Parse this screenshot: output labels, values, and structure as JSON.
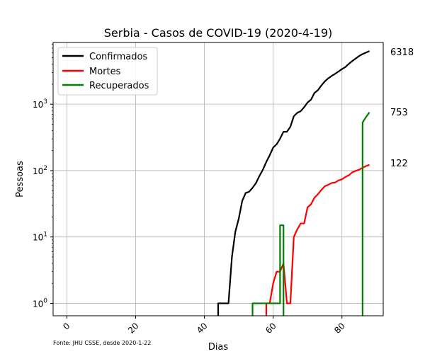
{
  "chart_data": {
    "type": "line",
    "title": "Serbia - Casos de COVID-19 (2020-4-19)",
    "xlabel": "Dias",
    "ylabel": "Pessoas",
    "y_scale": "log",
    "xlim": [
      -4,
      92
    ],
    "ylim": [
      0.65,
      8500
    ],
    "x_ticks": [
      0,
      20,
      40,
      60,
      80
    ],
    "y_ticks": [
      {
        "value": 1,
        "base": "10",
        "exp": "0"
      },
      {
        "value": 10,
        "base": "10",
        "exp": "1"
      },
      {
        "value": 100,
        "base": "10",
        "exp": "2"
      },
      {
        "value": 1000,
        "base": "10",
        "exp": "3"
      }
    ],
    "grid": true,
    "legend_position": "top-left",
    "source_note": "Fonte: JHU CSSE, desde 2020-1-22",
    "end_labels": [
      "6318",
      "753",
      "122"
    ],
    "series": [
      {
        "name": "Confirmados",
        "color": "#000000",
        "end_value": 6318,
        "points": [
          [
            44,
            0.5
          ],
          [
            44,
            1
          ],
          [
            47,
            1
          ],
          [
            48,
            5
          ],
          [
            49,
            12
          ],
          [
            50,
            19
          ],
          [
            51,
            35
          ],
          [
            52,
            46
          ],
          [
            53,
            48
          ],
          [
            54,
            55
          ],
          [
            55,
            65
          ],
          [
            56,
            83
          ],
          [
            57,
            103
          ],
          [
            58,
            135
          ],
          [
            59,
            171
          ],
          [
            60,
            222
          ],
          [
            61,
            249
          ],
          [
            62,
            303
          ],
          [
            63,
            384
          ],
          [
            64,
            384
          ],
          [
            65,
            457
          ],
          [
            66,
            659
          ],
          [
            67,
            741
          ],
          [
            68,
            785
          ],
          [
            69,
            900
          ],
          [
            70,
            1060
          ],
          [
            71,
            1171
          ],
          [
            72,
            1476
          ],
          [
            73,
            1624
          ],
          [
            74,
            1908
          ],
          [
            75,
            2200
          ],
          [
            76,
            2447
          ],
          [
            77,
            2666
          ],
          [
            78,
            2867
          ],
          [
            79,
            3105
          ],
          [
            80,
            3380
          ],
          [
            81,
            3630
          ],
          [
            82,
            4054
          ],
          [
            83,
            4465
          ],
          [
            84,
            4873
          ],
          [
            85,
            5318
          ],
          [
            86,
            5690
          ],
          [
            87,
            5994
          ],
          [
            88,
            6318
          ]
        ]
      },
      {
        "name": "Mortes",
        "color": "#ff0000",
        "end_value": 122,
        "points": [
          [
            58,
            0.5
          ],
          [
            58,
            1
          ],
          [
            59,
            1
          ],
          [
            60,
            2
          ],
          [
            61,
            3
          ],
          [
            62,
            3
          ],
          [
            63,
            4
          ],
          [
            64,
            1
          ],
          [
            65,
            1
          ],
          [
            66,
            10
          ],
          [
            67,
            13
          ],
          [
            68,
            16
          ],
          [
            69,
            16
          ],
          [
            70,
            28
          ],
          [
            71,
            31
          ],
          [
            72,
            39
          ],
          [
            73,
            44
          ],
          [
            74,
            51
          ],
          [
            75,
            58
          ],
          [
            76,
            61
          ],
          [
            77,
            65
          ],
          [
            78,
            66
          ],
          [
            79,
            71
          ],
          [
            80,
            74
          ],
          [
            81,
            80
          ],
          [
            82,
            85
          ],
          [
            83,
            94
          ],
          [
            84,
            99
          ],
          [
            85,
            103
          ],
          [
            86,
            110
          ],
          [
            87,
            117
          ],
          [
            88,
            122
          ]
        ]
      },
      {
        "name": "Recuperados",
        "color": "#008000",
        "end_value": 753,
        "points": [
          [
            54,
            0.5
          ],
          [
            54,
            1
          ],
          [
            62,
            1
          ],
          [
            62,
            15
          ],
          [
            63,
            15
          ],
          [
            63,
            0.5
          ],
          [
            86,
            0.5
          ],
          [
            86,
            530
          ],
          [
            87,
            640
          ],
          [
            88,
            753
          ]
        ]
      }
    ]
  }
}
